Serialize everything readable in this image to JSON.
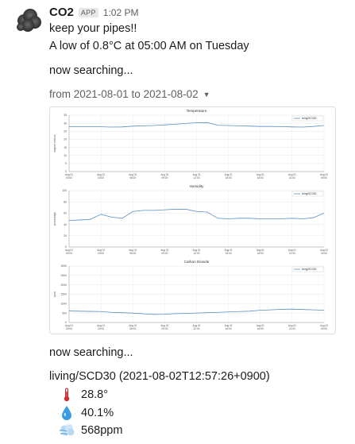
{
  "message": {
    "bot_name": "CO2",
    "app_badge": "APP",
    "time": "1:02 PM",
    "line1": "keep your pipes!!",
    "line2": "A low of 0.8°C at 05:00 AM on Tuesday",
    "status1": "now searching...",
    "date_range": "from 2021-08-01 to 2021-08-02",
    "status2": "now searching...",
    "sensor_header": "living/SCD30 (2021-08-02T12:57:26+0900)",
    "temperature": "28.8°",
    "humidity": "40.1%",
    "co2": "568ppm"
  },
  "icons": {
    "avatar": "cloud-avatar-icon",
    "caret": "caret-down-icon",
    "temperature": "thermometer-icon",
    "humidity": "droplet-icon",
    "co2": "wind-icon"
  },
  "colors": {
    "line": "#5b8fc4",
    "badge_bg": "#e8e8e8",
    "muted": "#616061"
  },
  "chart_data": [
    {
      "type": "line",
      "title": "Temperature",
      "ylabel": "degree celsius",
      "ylim": [
        0,
        35
      ],
      "yticks": [
        0,
        5,
        10,
        15,
        20,
        25,
        30,
        35
      ],
      "ytick_labels": [
        "0",
        "5",
        "10",
        "15",
        "20",
        "25",
        "30",
        "35"
      ],
      "xtick_labels": [
        "Aug 01 00:00",
        "Aug 01 03:00",
        "Aug 01 06:00",
        "Aug 01 09:00",
        "Aug 01 12:00",
        "Aug 01 15:00",
        "Aug 01 18:00",
        "Aug 01 21:00",
        "Aug 02 00:00"
      ],
      "x_hours": [
        0,
        1,
        2,
        3,
        4,
        5,
        6,
        7,
        8,
        9,
        10,
        11,
        12,
        13,
        14,
        15,
        16,
        17,
        18,
        19,
        20,
        21,
        22,
        23,
        24
      ],
      "series": [
        {
          "name": "living/SCD30",
          "values": [
            27.8,
            27.9,
            27.9,
            27.8,
            27.6,
            27.7,
            28.2,
            28.4,
            28.6,
            29.0,
            29.4,
            29.9,
            30.3,
            30.4,
            28.7,
            28.6,
            28.4,
            28.2,
            28.0,
            28.0,
            27.9,
            27.7,
            27.6,
            28.0,
            28.6
          ]
        }
      ],
      "legend": "top-right",
      "grid": true
    },
    {
      "type": "line",
      "title": "Humidity",
      "ylabel": "percentage",
      "ylim": [
        0,
        100
      ],
      "yticks": [
        0,
        20,
        40,
        60,
        80,
        100
      ],
      "ytick_labels": [
        "0",
        "20",
        "40",
        "60",
        "80",
        "100"
      ],
      "xtick_labels": [
        "Aug 01 00:00",
        "Aug 01 03:00",
        "Aug 01 06:00",
        "Aug 01 09:00",
        "Aug 01 12:00",
        "Aug 01 15:00",
        "Aug 01 18:00",
        "Aug 01 21:00",
        "Aug 02 00:00"
      ],
      "x_hours": [
        0,
        1,
        2,
        3,
        4,
        5,
        6,
        7,
        8,
        9,
        10,
        11,
        12,
        13,
        14,
        15,
        16,
        17,
        18,
        19,
        20,
        21,
        22,
        23,
        24
      ],
      "series": [
        {
          "name": "living/SCD30",
          "values": [
            47,
            48,
            49,
            58,
            53,
            51,
            63,
            65,
            65,
            66,
            67,
            67,
            63,
            62,
            51,
            50,
            51,
            51,
            50,
            50,
            50,
            51,
            50,
            52,
            60
          ]
        }
      ],
      "legend": "top-right",
      "grid": true
    },
    {
      "type": "line",
      "title": "Carbon Dioxide",
      "ylabel": "ppm",
      "ylim": [
        0,
        3000
      ],
      "yticks": [
        0,
        500,
        1000,
        1500,
        2000,
        2500,
        3000
      ],
      "ytick_labels": [
        "0",
        "500",
        "1000",
        "1500",
        "2000",
        "2500",
        "3000"
      ],
      "xtick_labels": [
        "Aug 01 00:00",
        "Aug 01 03:00",
        "Aug 01 06:00",
        "Aug 01 09:00",
        "Aug 01 12:00",
        "Aug 01 15:00",
        "Aug 01 18:00",
        "Aug 01 21:00",
        "Aug 02 00:00"
      ],
      "x_hours": [
        0,
        1,
        2,
        3,
        4,
        5,
        6,
        7,
        8,
        9,
        10,
        11,
        12,
        13,
        14,
        15,
        16,
        17,
        18,
        19,
        20,
        21,
        22,
        23,
        24
      ],
      "series": [
        {
          "name": "living/SCD30",
          "values": [
            610,
            600,
            590,
            580,
            540,
            520,
            500,
            460,
            430,
            440,
            470,
            480,
            500,
            520,
            540,
            560,
            580,
            600,
            650,
            670,
            700,
            710,
            690,
            670,
            650
          ]
        }
      ],
      "legend": "top-right",
      "grid": true
    }
  ]
}
